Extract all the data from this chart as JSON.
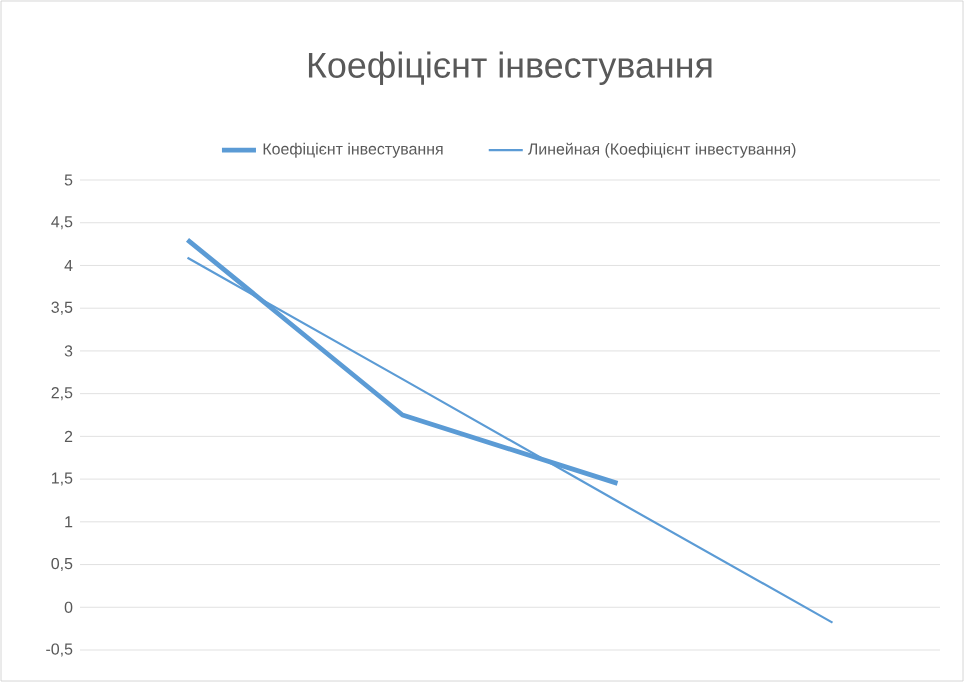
{
  "chart_data": {
    "type": "line",
    "title": "Коефіцієнт інвестування",
    "categories": [
      null,
      null,
      null,
      null
    ],
    "series": [
      {
        "name": "Коефіцієнт інвестування",
        "color": "#5b9bd5",
        "values": [
          4.3,
          2.25,
          1.45,
          null
        ]
      },
      {
        "name": "Линейная (Коефіцієнт інвестування)",
        "color": "#5b9bd5",
        "values": [
          4.09,
          2.67,
          1.24,
          -0.18
        ]
      }
    ],
    "ylim": [
      -0.5,
      5
    ],
    "yticks": [
      {
        "value": -0.5,
        "label": "-0,5"
      },
      0,
      {
        "value": 0.5,
        "label": "0,5"
      },
      1,
      {
        "value": 1.5,
        "label": "1,5"
      },
      2,
      {
        "value": 2.5,
        "label": "2,5"
      },
      3,
      {
        "value": 3.5,
        "label": "3,5"
      },
      4,
      {
        "value": 4.5,
        "label": "4,5"
      },
      5
    ],
    "grid": "y",
    "legend": "top",
    "marker": "none",
    "line_style": "solid"
  }
}
